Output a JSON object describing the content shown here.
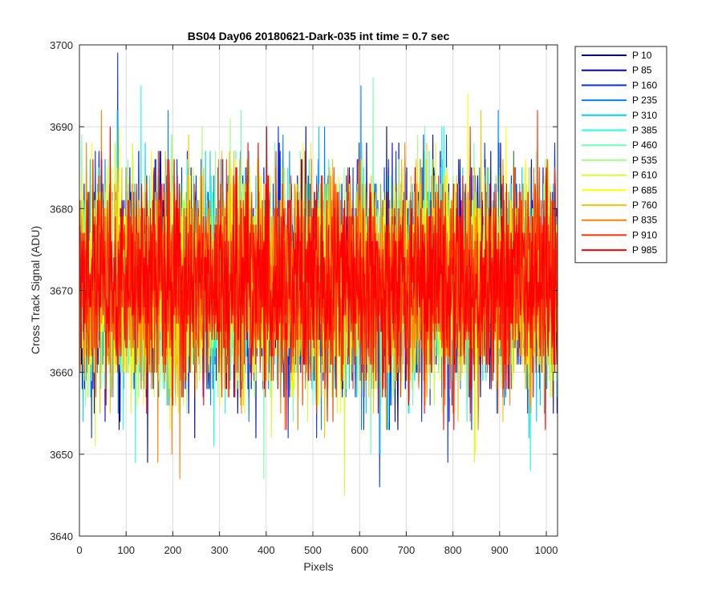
{
  "chart_data": {
    "type": "line",
    "title": "BS04 Day06 20180621-Dark-035 int time = 0.7 sec",
    "xlabel": "Pixels",
    "ylabel": "Cross Track Signal (ADU)",
    "xlim": [
      0,
      1024
    ],
    "ylim": [
      3640,
      3700
    ],
    "x_ticks": [
      0,
      100,
      200,
      300,
      400,
      500,
      600,
      700,
      800,
      900,
      1000
    ],
    "y_ticks": [
      3640,
      3650,
      3660,
      3670,
      3680,
      3690,
      3700
    ],
    "grid": true,
    "legend_position": "outside-top-right",
    "n_points": 1024,
    "series": [
      {
        "name": "P 10",
        "color": "#00008f",
        "mean": 3671,
        "noise_min": 3644,
        "noise_max": 3700
      },
      {
        "name": "P 85",
        "color": "#0000df",
        "mean": 3671,
        "noise_min": 3644,
        "noise_max": 3700
      },
      {
        "name": "P 160",
        "color": "#0030ff",
        "mean": 3671,
        "noise_min": 3644,
        "noise_max": 3700
      },
      {
        "name": "P 235",
        "color": "#0080ff",
        "mean": 3671,
        "noise_min": 3644,
        "noise_max": 3700
      },
      {
        "name": "P 310",
        "color": "#00cfff",
        "mean": 3671,
        "noise_min": 3644,
        "noise_max": 3700
      },
      {
        "name": "P 385",
        "color": "#20ffdf",
        "mean": 3671,
        "noise_min": 3644,
        "noise_max": 3700
      },
      {
        "name": "P 460",
        "color": "#70ffb0",
        "mean": 3671,
        "noise_min": 3644,
        "noise_max": 3700
      },
      {
        "name": "P 535",
        "color": "#a0ff80",
        "mean": 3671,
        "noise_min": 3644,
        "noise_max": 3700
      },
      {
        "name": "P 610",
        "color": "#d0ff30",
        "mean": 3671,
        "noise_min": 3644,
        "noise_max": 3700
      },
      {
        "name": "P 685",
        "color": "#ffff00",
        "mean": 3671,
        "noise_min": 3644,
        "noise_max": 3700
      },
      {
        "name": "P 760",
        "color": "#ffc000",
        "mean": 3671,
        "noise_min": 3644,
        "noise_max": 3700
      },
      {
        "name": "P 835",
        "color": "#ff8000",
        "mean": 3671,
        "noise_min": 3644,
        "noise_max": 3700
      },
      {
        "name": "P 910",
        "color": "#ff3000",
        "mean": 3671,
        "noise_min": 3644,
        "noise_max": 3700
      },
      {
        "name": "P 985",
        "color": "#ff0000",
        "mean": 3671,
        "noise_min": 3644,
        "noise_max": 3700
      }
    ]
  }
}
